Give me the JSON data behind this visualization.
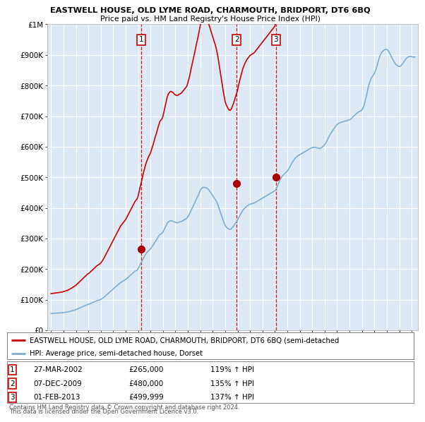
{
  "title1": "EASTWELL HOUSE, OLD LYME ROAD, CHARMOUTH, BRIDPORT, DT6 6BQ",
  "title2": "Price paid vs. HM Land Registry's House Price Index (HPI)",
  "bg_color": "#dce9f5",
  "red_color": "#cc0000",
  "blue_color": "#7bafd4",
  "dot_color": "#aa0000",
  "transactions": [
    {
      "date_num": 2002.23,
      "price": 265000,
      "label": "1"
    },
    {
      "date_num": 2009.92,
      "price": 480000,
      "label": "2"
    },
    {
      "date_num": 2013.08,
      "price": 499999,
      "label": "3"
    }
  ],
  "transaction_dates_str": [
    "27-MAR-2002",
    "07-DEC-2009",
    "01-FEB-2013"
  ],
  "transaction_prices_str": [
    "£265,000",
    "£480,000",
    "£499,999"
  ],
  "transaction_hpi": [
    "119% ↑ HPI",
    "135% ↑ HPI",
    "137% ↑ HPI"
  ],
  "legend_red": "EASTWELL HOUSE, OLD LYME ROAD, CHARMOUTH, BRIDPORT, DT6 6BQ (semi-detached",
  "legend_blue": "HPI: Average price, semi-detached house, Dorset",
  "footnote1": "Contains HM Land Registry data © Crown copyright and database right 2024.",
  "footnote2": "This data is licensed under the Open Government Licence v3.0.",
  "ylim": [
    0,
    1000000
  ],
  "yticks": [
    0,
    100000,
    200000,
    300000,
    400000,
    500000,
    600000,
    700000,
    800000,
    900000,
    1000000
  ],
  "ytick_labels": [
    "£0",
    "£100K",
    "£200K",
    "£300K",
    "£400K",
    "£500K",
    "£600K",
    "£700K",
    "£800K",
    "£900K",
    "£1M"
  ],
  "xlim_start": 1994.7,
  "xlim_end": 2024.5,
  "xticks": [
    1995,
    1996,
    1997,
    1998,
    1999,
    2000,
    2001,
    2002,
    2003,
    2004,
    2005,
    2006,
    2007,
    2008,
    2009,
    2010,
    2011,
    2012,
    2013,
    2014,
    2015,
    2016,
    2017,
    2018,
    2019,
    2020,
    2021,
    2022,
    2023,
    2024
  ],
  "red_scale": 2.18,
  "hpi_dates": [
    1995.0,
    1995.083,
    1995.167,
    1995.25,
    1995.333,
    1995.417,
    1995.5,
    1995.583,
    1995.667,
    1995.75,
    1995.833,
    1995.917,
    1996.0,
    1996.083,
    1996.167,
    1996.25,
    1996.333,
    1996.417,
    1996.5,
    1996.583,
    1996.667,
    1996.75,
    1996.833,
    1996.917,
    1997.0,
    1997.083,
    1997.167,
    1997.25,
    1997.333,
    1997.417,
    1997.5,
    1997.583,
    1997.667,
    1997.75,
    1997.833,
    1997.917,
    1998.0,
    1998.083,
    1998.167,
    1998.25,
    1998.333,
    1998.417,
    1998.5,
    1998.583,
    1998.667,
    1998.75,
    1998.833,
    1998.917,
    1999.0,
    1999.083,
    1999.167,
    1999.25,
    1999.333,
    1999.417,
    1999.5,
    1999.583,
    1999.667,
    1999.75,
    1999.833,
    1999.917,
    2000.0,
    2000.083,
    2000.167,
    2000.25,
    2000.333,
    2000.417,
    2000.5,
    2000.583,
    2000.667,
    2000.75,
    2000.833,
    2000.917,
    2001.0,
    2001.083,
    2001.167,
    2001.25,
    2001.333,
    2001.417,
    2001.5,
    2001.583,
    2001.667,
    2001.75,
    2001.833,
    2001.917,
    2002.0,
    2002.083,
    2002.167,
    2002.25,
    2002.333,
    2002.417,
    2002.5,
    2002.583,
    2002.667,
    2002.75,
    2002.833,
    2002.917,
    2003.0,
    2003.083,
    2003.167,
    2003.25,
    2003.333,
    2003.417,
    2003.5,
    2003.583,
    2003.667,
    2003.75,
    2003.833,
    2003.917,
    2004.0,
    2004.083,
    2004.167,
    2004.25,
    2004.333,
    2004.417,
    2004.5,
    2004.583,
    2004.667,
    2004.75,
    2004.833,
    2004.917,
    2005.0,
    2005.083,
    2005.167,
    2005.25,
    2005.333,
    2005.417,
    2005.5,
    2005.583,
    2005.667,
    2005.75,
    2005.833,
    2005.917,
    2006.0,
    2006.083,
    2006.167,
    2006.25,
    2006.333,
    2006.417,
    2006.5,
    2006.583,
    2006.667,
    2006.75,
    2006.833,
    2006.917,
    2007.0,
    2007.083,
    2007.167,
    2007.25,
    2007.333,
    2007.417,
    2007.5,
    2007.583,
    2007.667,
    2007.75,
    2007.833,
    2007.917,
    2008.0,
    2008.083,
    2008.167,
    2008.25,
    2008.333,
    2008.417,
    2008.5,
    2008.583,
    2008.667,
    2008.75,
    2008.833,
    2008.917,
    2009.0,
    2009.083,
    2009.167,
    2009.25,
    2009.333,
    2009.417,
    2009.5,
    2009.583,
    2009.667,
    2009.75,
    2009.833,
    2009.917,
    2010.0,
    2010.083,
    2010.167,
    2010.25,
    2010.333,
    2010.417,
    2010.5,
    2010.583,
    2010.667,
    2010.75,
    2010.833,
    2010.917,
    2011.0,
    2011.083,
    2011.167,
    2011.25,
    2011.333,
    2011.417,
    2011.5,
    2011.583,
    2011.667,
    2011.75,
    2011.833,
    2011.917,
    2012.0,
    2012.083,
    2012.167,
    2012.25,
    2012.333,
    2012.417,
    2012.5,
    2012.583,
    2012.667,
    2012.75,
    2012.833,
    2012.917,
    2013.0,
    2013.083,
    2013.167,
    2013.25,
    2013.333,
    2013.417,
    2013.5,
    2013.583,
    2013.667,
    2013.75,
    2013.833,
    2013.917,
    2014.0,
    2014.083,
    2014.167,
    2014.25,
    2014.333,
    2014.417,
    2014.5,
    2014.583,
    2014.667,
    2014.75,
    2014.833,
    2014.917,
    2015.0,
    2015.083,
    2015.167,
    2015.25,
    2015.333,
    2015.417,
    2015.5,
    2015.583,
    2015.667,
    2015.75,
    2015.833,
    2015.917,
    2016.0,
    2016.083,
    2016.167,
    2016.25,
    2016.333,
    2016.417,
    2016.5,
    2016.583,
    2016.667,
    2016.75,
    2016.833,
    2016.917,
    2017.0,
    2017.083,
    2017.167,
    2017.25,
    2017.333,
    2017.417,
    2017.5,
    2017.583,
    2017.667,
    2017.75,
    2017.833,
    2017.917,
    2018.0,
    2018.083,
    2018.167,
    2018.25,
    2018.333,
    2018.417,
    2018.5,
    2018.583,
    2018.667,
    2018.75,
    2018.833,
    2018.917,
    2019.0,
    2019.083,
    2019.167,
    2019.25,
    2019.333,
    2019.417,
    2019.5,
    2019.583,
    2019.667,
    2019.75,
    2019.833,
    2019.917,
    2020.0,
    2020.083,
    2020.167,
    2020.25,
    2020.333,
    2020.417,
    2020.5,
    2020.583,
    2020.667,
    2020.75,
    2020.833,
    2020.917,
    2021.0,
    2021.083,
    2021.167,
    2021.25,
    2021.333,
    2021.417,
    2021.5,
    2021.583,
    2021.667,
    2021.75,
    2021.833,
    2021.917,
    2022.0,
    2022.083,
    2022.167,
    2022.25,
    2022.333,
    2022.417,
    2022.5,
    2022.583,
    2022.667,
    2022.75,
    2022.833,
    2022.917,
    2023.0,
    2023.083,
    2023.167,
    2023.25,
    2023.333,
    2023.417,
    2023.5,
    2023.583,
    2023.667,
    2023.75,
    2023.833,
    2023.917,
    2024.0,
    2024.083,
    2024.167,
    2024.25
  ],
  "hpi_values": [
    55000,
    55200,
    55400,
    55600,
    55800,
    56000,
    56200,
    56500,
    56800,
    57000,
    57200,
    57500,
    58000,
    58500,
    59000,
    59500,
    60000,
    60800,
    61500,
    62500,
    63500,
    64500,
    65500,
    66500,
    67500,
    69000,
    70500,
    72000,
    73500,
    75000,
    76500,
    78000,
    79500,
    81000,
    82500,
    84000,
    85000,
    86000,
    87500,
    89000,
    90500,
    92000,
    93500,
    95000,
    96500,
    97500,
    98500,
    99500,
    101000,
    103000,
    105500,
    108000,
    111000,
    114000,
    117000,
    120000,
    123000,
    126000,
    129000,
    132000,
    135000,
    138000,
    141000,
    144000,
    147000,
    150000,
    153000,
    156000,
    158000,
    160000,
    162000,
    164000,
    166000,
    169000,
    172000,
    175000,
    178000,
    181000,
    184000,
    187000,
    190000,
    193000,
    195000,
    197000,
    201000,
    208000,
    215000,
    221000,
    228000,
    235000,
    241000,
    247000,
    252000,
    256000,
    260000,
    263000,
    266000,
    271000,
    276000,
    281000,
    287000,
    292000,
    297000,
    303000,
    308000,
    313000,
    315000,
    317000,
    321000,
    328000,
    335000,
    342000,
    349000,
    354000,
    356000,
    358000,
    358000,
    357000,
    356000,
    354000,
    353000,
    352000,
    352000,
    353000,
    354000,
    355000,
    356000,
    358000,
    360000,
    362000,
    364000,
    366000,
    371000,
    377000,
    383000,
    391000,
    398000,
    405000,
    412000,
    419000,
    427000,
    434000,
    441000,
    449000,
    457000,
    463000,
    466000,
    467000,
    467000,
    466000,
    465000,
    463000,
    460000,
    455000,
    450000,
    445000,
    440000,
    435000,
    430000,
    425000,
    418000,
    410000,
    400000,
    390000,
    380000,
    370000,
    360000,
    351000,
    343000,
    338000,
    335000,
    332000,
    330000,
    330000,
    332000,
    336000,
    340000,
    345000,
    350000,
    355000,
    360000,
    368000,
    374000,
    380000,
    386000,
    392000,
    396000,
    400000,
    403000,
    406000,
    408000,
    410000,
    412000,
    413000,
    414000,
    415000,
    416000,
    418000,
    420000,
    422000,
    424000,
    426000,
    428000,
    430000,
    432000,
    434000,
    436000,
    438000,
    440000,
    442000,
    444000,
    446000,
    448000,
    450000,
    452000,
    454000,
    456000,
    462000,
    468000,
    476000,
    484000,
    492000,
    498000,
    503000,
    507000,
    511000,
    514000,
    517000,
    521000,
    526000,
    532000,
    538000,
    544000,
    550000,
    555000,
    560000,
    564000,
    567000,
    570000,
    572000,
    574000,
    576000,
    578000,
    580000,
    582000,
    584000,
    586000,
    588000,
    590000,
    592000,
    594000,
    596000,
    597000,
    598000,
    598000,
    598000,
    597000,
    596000,
    595000,
    594000,
    595000,
    597000,
    600000,
    603000,
    607000,
    612000,
    618000,
    625000,
    632000,
    638000,
    644000,
    649000,
    654000,
    659000,
    664000,
    668000,
    672000,
    675000,
    677000,
    679000,
    680000,
    681000,
    682000,
    683000,
    684000,
    685000,
    686000,
    687000,
    688000,
    690000,
    693000,
    697000,
    700000,
    703000,
    706000,
    709000,
    712000,
    714000,
    716000,
    718000,
    720000,
    727000,
    735000,
    748000,
    762000,
    778000,
    793000,
    806000,
    816000,
    824000,
    830000,
    835000,
    840000,
    848000,
    858000,
    870000,
    882000,
    893000,
    902000,
    908000,
    912000,
    915000,
    917000,
    918000,
    918000,
    915000,
    910000,
    904000,
    897000,
    890000,
    883000,
    877000,
    872000,
    868000,
    865000,
    863000,
    862000,
    863000,
    866000,
    870000,
    875000,
    880000,
    885000,
    889000,
    892000,
    894000,
    895000,
    895000,
    894000,
    893000,
    893000,
    893000
  ]
}
